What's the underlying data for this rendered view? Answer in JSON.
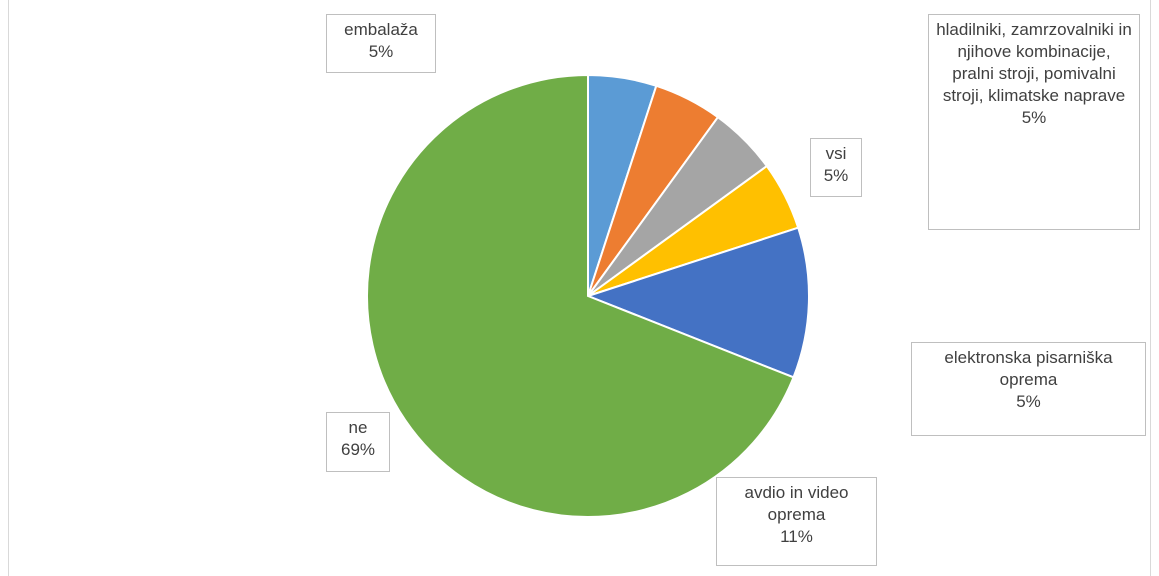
{
  "chart_data": {
    "type": "pie",
    "categories": [
      "embalaža",
      "hladilniki, zamrzovalniki in njihove kombinacije, pralni stroji, pomivalni stroji, klimatske naprave",
      "vsi",
      "elektronska pisarniška oprema",
      "avdio in video oprema",
      "ne"
    ],
    "values": [
      5,
      5,
      5,
      5,
      11,
      69
    ],
    "value_labels": [
      "5%",
      "5%",
      "5%",
      "5%",
      "11%",
      "69%"
    ],
    "colors": [
      "#5b9bd5",
      "#ed7d31",
      "#a5a5a5",
      "#ffc000",
      "#4472c4",
      "#70ad47"
    ]
  }
}
